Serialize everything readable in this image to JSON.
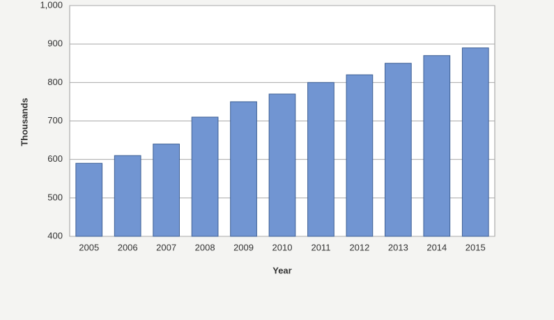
{
  "chart_data": {
    "type": "bar",
    "x_label": "Year",
    "y_label": "Thousands",
    "categories": [
      "2005",
      "2006",
      "2007",
      "2008",
      "2009",
      "2010",
      "2011",
      "2012",
      "2013",
      "2014",
      "2015"
    ],
    "values": [
      590,
      610,
      640,
      710,
      750,
      770,
      800,
      820,
      850,
      870,
      890
    ],
    "color": "#7195d2",
    "ylim": [
      400,
      1000
    ],
    "yticks": [
      400,
      500,
      600,
      700,
      800,
      900,
      {
        "value": 1000,
        "label": "1,000"
      }
    ],
    "grid": true
  }
}
